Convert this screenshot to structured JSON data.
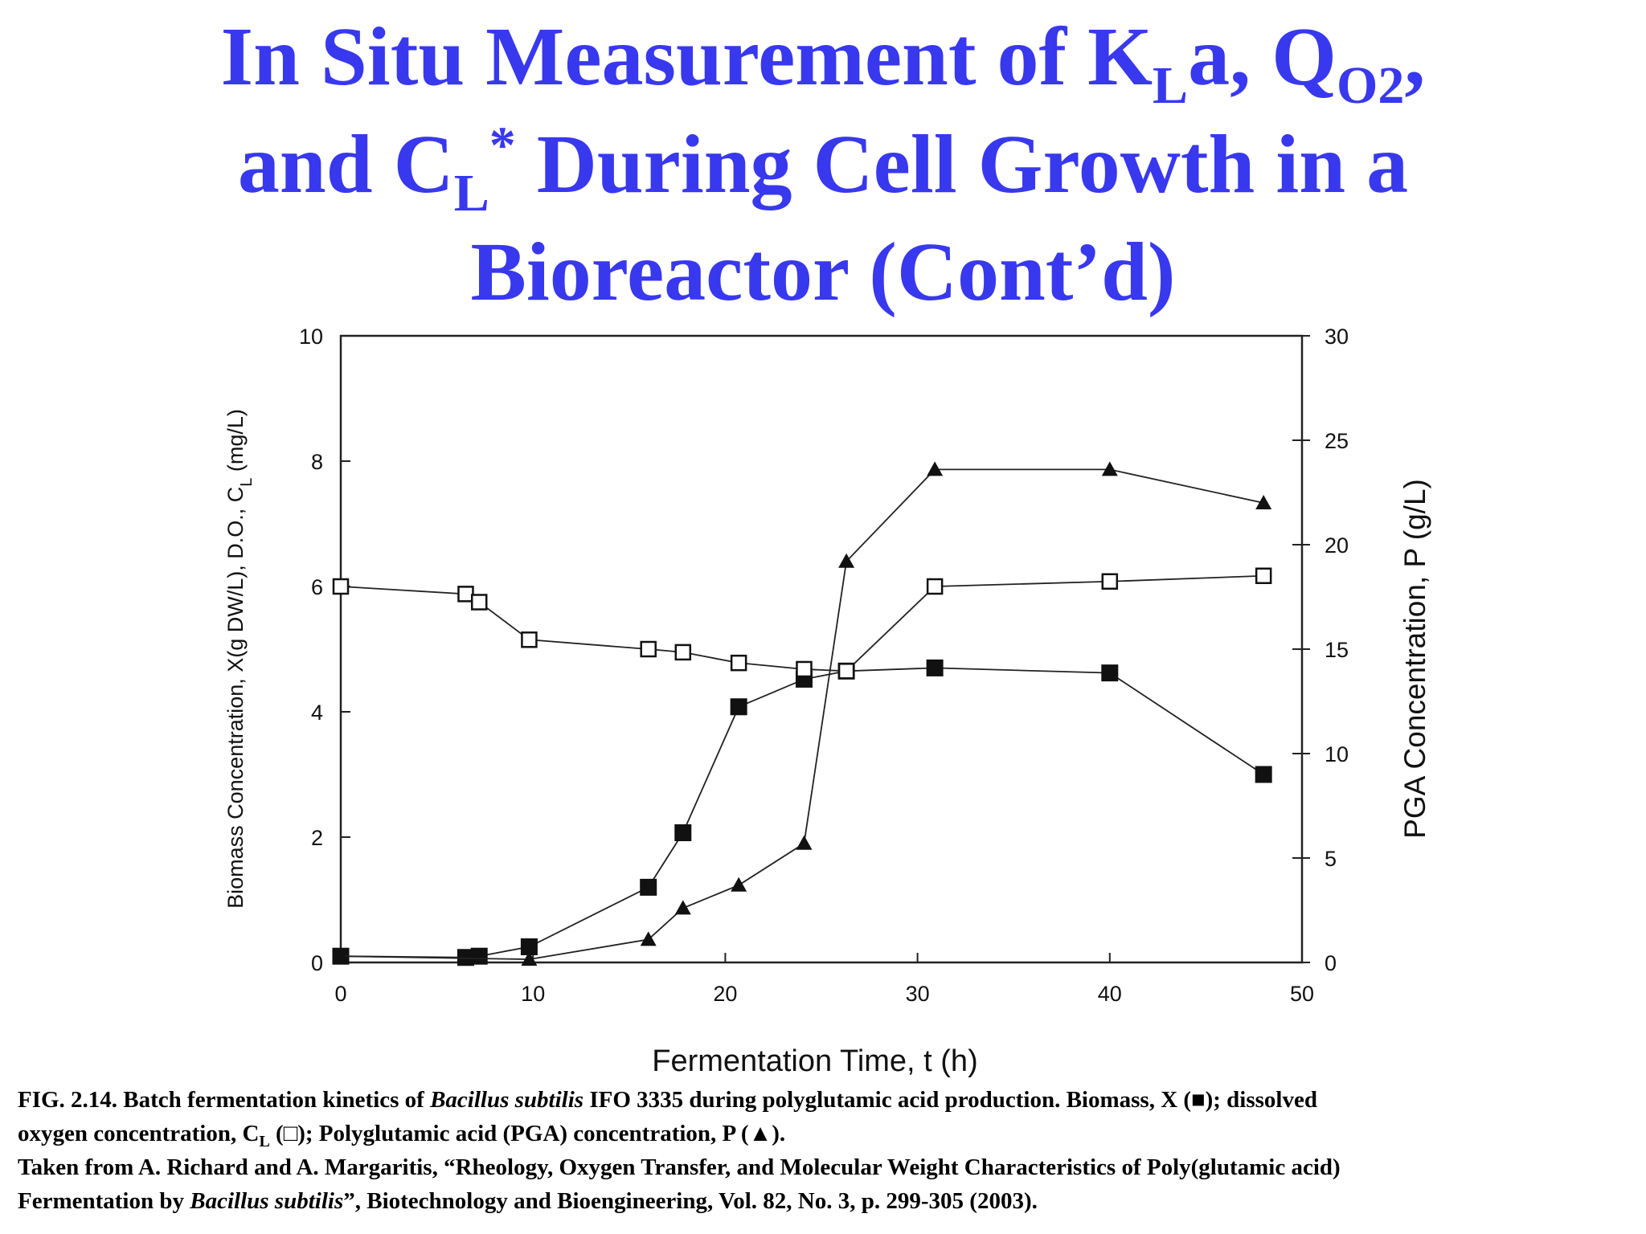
{
  "title": {
    "l1_a": "In Situ Measurement of K",
    "l1_sub1": "L",
    "l1_b": "a, Q",
    "l1_sub2": "O2",
    "l1_c": ",",
    "l2_a": "and C",
    "l2_sub": "L",
    "l2_sup": "*",
    "l2_b": " During Cell Growth in a",
    "l3": "Bioreactor (Cont’d)"
  },
  "chart_data": {
    "type": "line",
    "xlabel": "Fermentation Time, t (h)",
    "ylabel_left": "Biomass Concentration, X(g DW/L), D.O., C_L (mg/L)",
    "ylabel_left_parts": {
      "main": "Biomass Concentration, X(g DW/L), D.O., C",
      "sub": "L",
      "end": " (mg/L)"
    },
    "ylabel_right": "PGA Concentration, P (g/L)",
    "xlim": [
      0,
      50
    ],
    "ylim_left": [
      0,
      10
    ],
    "ylim_right": [
      0,
      30
    ],
    "x_ticks": [
      "0",
      "10",
      "20",
      "30",
      "40",
      "50"
    ],
    "y_left_ticks": [
      "0",
      "2",
      "4",
      "6",
      "8",
      "10"
    ],
    "y_right_ticks": [
      "0",
      "5",
      "10",
      "15",
      "20",
      "25",
      "30"
    ],
    "grid": false,
    "series": [
      {
        "marker": "filled-square",
        "axis": "left",
        "x": [
          0,
          6.5,
          7.2,
          9.8,
          16,
          17.8,
          20.7,
          24.1,
          26.3,
          30.9,
          40,
          48
        ],
        "y": [
          0.1,
          0.08,
          0.1,
          0.25,
          1.2,
          2.07,
          4.08,
          4.52,
          4.65,
          4.7,
          4.62,
          3.0
        ]
      },
      {
        "marker": "open-square",
        "axis": "left",
        "x": [
          0,
          6.5,
          7.2,
          9.8,
          16,
          17.8,
          20.7,
          24.1,
          26.3,
          30.9,
          40,
          48
        ],
        "y": [
          6.0,
          5.88,
          5.75,
          5.15,
          5.0,
          4.95,
          4.78,
          4.68,
          4.65,
          6.0,
          6.08,
          6.17
        ]
      },
      {
        "marker": "filled-triangle",
        "axis": "right",
        "x": [
          0,
          9.8,
          16,
          17.8,
          20.7,
          24.1,
          26.3,
          30.9,
          40,
          48
        ],
        "y": [
          0.3,
          0.15,
          1.1,
          2.6,
          3.7,
          5.7,
          19.2,
          23.6,
          23.6,
          22.0
        ]
      }
    ]
  },
  "caption": {
    "fig": "FIG. 2.14. Batch fermentation kinetics of ",
    "species": "Bacillus subtilis",
    "fig_rest": " IFO 3335 during polyglutamic acid production. Biomass, X (■); dissolved",
    "line2_a": "oxygen concentration, C",
    "line2_sub": "L",
    "line2_b": " (□); Polyglutamic acid (PGA) concentration, P (▲).",
    "line3": "Taken from A. Richard and A. Margaritis, “Rheology, Oxygen Transfer, and Molecular Weight Characteristics of Poly(glutamic acid)",
    "line4_a": "Fermentation by ",
    "line4_species": "Bacillus subtilis",
    "line4_b": "”, Biotechnology and Bioengineering, Vol. 82, No. 3, p. 299-305 (2003)."
  }
}
